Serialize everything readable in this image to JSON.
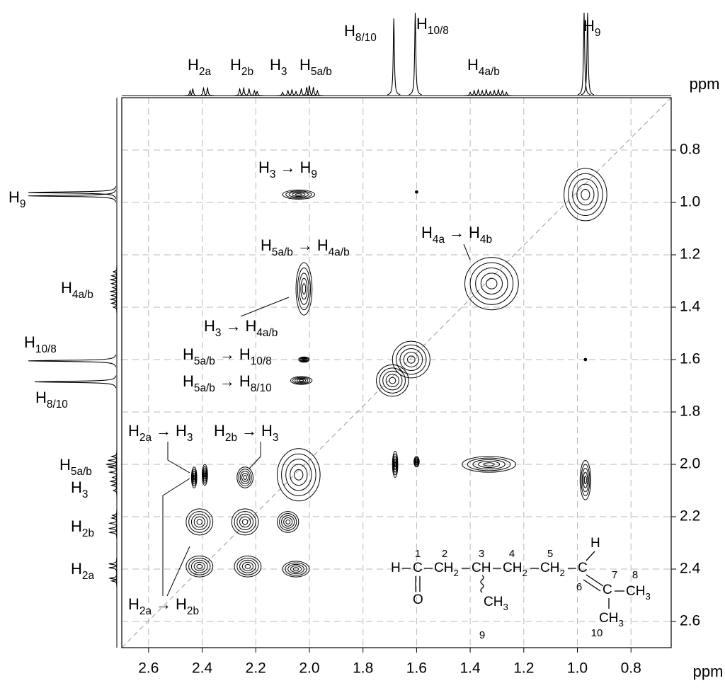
{
  "chart_data": {
    "type": "cosy",
    "xlabel": "ppm",
    "ylabel": "ppm",
    "xlim": [
      2.7,
      0.65
    ],
    "ylim": [
      0.6,
      2.7
    ],
    "xticks": [
      2.6,
      2.4,
      2.2,
      {
        "value": 2,
        "label": "2.0"
      },
      1.8,
      1.6,
      1.4,
      1.2,
      {
        "value": 1,
        "label": "1.0"
      },
      0.8
    ],
    "yticks": [
      0.8,
      {
        "value": 1,
        "label": "1.0"
      },
      1.2,
      1.4,
      1.6,
      1.8,
      {
        "value": 2,
        "label": "2.0"
      },
      2.2,
      2.4,
      2.6
    ],
    "grid": true,
    "diagonal": true,
    "color": "#000000",
    "projection": {
      "ppm": [
        2.445,
        2.435,
        2.395,
        2.38,
        2.26,
        2.245,
        2.225,
        2.205,
        2.195,
        2.1,
        2.08,
        2.065,
        2.05,
        2.03,
        2.01,
        2.0,
        1.985,
        1.97,
        1.685,
        1.605,
        1.4,
        1.385,
        1.37,
        1.355,
        1.34,
        1.325,
        1.31,
        1.295,
        1.28,
        1.265,
        0.975,
        0.962
      ],
      "height": [
        0.06,
        0.08,
        0.09,
        0.09,
        0.08,
        0.09,
        0.08,
        0.06,
        0.05,
        0.04,
        0.06,
        0.07,
        0.05,
        0.08,
        0.1,
        0.12,
        0.1,
        0.06,
        0.93,
        1.0,
        0.04,
        0.06,
        0.07,
        0.06,
        0.07,
        0.05,
        0.06,
        0.07,
        0.06,
        0.04,
        1.0,
        1.0
      ]
    },
    "peaks": {
      "x": [
        2.04,
        0.97,
        1.6,
        2.02,
        1.32,
        1.62,
        1.69,
        2.02,
        2.03,
        0.97,
        2.04,
        1.68,
        1.6,
        1.33,
        0.97,
        2.43,
        2.39,
        2.24,
        2.41,
        2.24,
        2.08,
        2.41,
        2.23,
        2.05
      ],
      "y": [
        0.97,
        0.97,
        0.96,
        1.33,
        1.31,
        1.6,
        1.68,
        1.6,
        1.68,
        1.6,
        2.04,
        2.0,
        1.99,
        2.0,
        2.06,
        2.05,
        2.04,
        2.05,
        2.22,
        2.22,
        2.22,
        2.39,
        2.39,
        2.4
      ],
      "x_width": [
        0.12,
        0.16,
        0.01,
        0.06,
        0.2,
        0.14,
        0.12,
        0.04,
        0.08,
        0.01,
        0.16,
        0.02,
        0.02,
        0.2,
        0.04,
        0.02,
        0.02,
        0.06,
        0.1,
        0.1,
        0.08,
        0.1,
        0.1,
        0.1
      ],
      "y_width": [
        0.035,
        0.2,
        0.01,
        0.2,
        0.2,
        0.14,
        0.12,
        0.02,
        0.03,
        0.01,
        0.2,
        0.1,
        0.04,
        0.06,
        0.15,
        0.08,
        0.08,
        0.08,
        0.1,
        0.1,
        0.08,
        0.08,
        0.08,
        0.06
      ]
    },
    "top_labels": [
      {
        "main": "H",
        "sub": "2a"
      },
      {
        "main": "H",
        "sub": "2b"
      },
      {
        "main": "H",
        "sub": "3"
      },
      {
        "main": "H",
        "sub": "5a/b"
      },
      {
        "main": "H",
        "sub": "8/10"
      },
      {
        "main": "H",
        "sub": "10/8"
      },
      {
        "main": "H",
        "sub": "4a/b"
      },
      {
        "main": "H",
        "sub": "9"
      }
    ],
    "left_labels": [
      {
        "main": "H",
        "sub": "9"
      },
      {
        "main": "H",
        "sub": "4a/b"
      },
      {
        "main": "H",
        "sub": "10/8"
      },
      {
        "main": "H",
        "sub": "8/10"
      },
      {
        "main": "H",
        "sub": "5a/b"
      },
      {
        "main": "H",
        "sub": "3"
      },
      {
        "main": "H",
        "sub": "2b"
      },
      {
        "main": "H",
        "sub": "2a"
      }
    ],
    "annotations": [
      {
        "from": {
          "main": "H",
          "sub": "3"
        },
        "arrow": "→",
        "to": {
          "main": "H",
          "sub": "9"
        }
      },
      {
        "from": {
          "main": "H",
          "sub": "5a/b"
        },
        "arrow": "→",
        "to": {
          "main": "H",
          "sub": "4a/b"
        }
      },
      {
        "from": {
          "main": "H",
          "sub": "4a"
        },
        "arrow": "→",
        "to": {
          "main": "H",
          "sub": "4b"
        }
      },
      {
        "from": {
          "main": "H",
          "sub": "3"
        },
        "arrow": "→",
        "to": {
          "main": "H",
          "sub": "4a/b"
        }
      },
      {
        "from": {
          "main": "H",
          "sub": "5a/b"
        },
        "arrow": "→",
        "to": {
          "main": "H",
          "sub": "10/8"
        }
      },
      {
        "from": {
          "main": "H",
          "sub": "5a/b"
        },
        "arrow": "→",
        "to": {
          "main": "H",
          "sub": "8/10"
        }
      },
      {
        "from": {
          "main": "H",
          "sub": "2a"
        },
        "arrow": "→",
        "to": {
          "main": "H",
          "sub": "3"
        }
      },
      {
        "from": {
          "main": "H",
          "sub": "2b"
        },
        "arrow": "→",
        "to": {
          "main": "H",
          "sub": "3"
        }
      },
      {
        "from": {
          "main": "H",
          "sub": "2a"
        },
        "arrow": "→",
        "to": {
          "main": "H",
          "sub": "2b"
        }
      }
    ],
    "structure": {
      "atoms": [
        {
          "main": "H"
        },
        {
          "main": "C"
        },
        {
          "main": "CH",
          "sub": "2"
        },
        {
          "main": "CH"
        },
        {
          "main": "CH",
          "sub": "2"
        },
        {
          "main": "CH",
          "sub": "2"
        },
        {
          "main": "C"
        },
        {
          "main": "H"
        },
        {
          "main": "C"
        },
        {
          "main": "CH",
          "sub": "3"
        },
        {
          "main": "O"
        },
        {
          "main": "CH",
          "sub": "3"
        },
        {
          "main": "CH",
          "sub": "3"
        }
      ],
      "locants": [
        "1",
        "2",
        "3",
        "4",
        "5",
        "6",
        "7",
        "8",
        "9",
        "10"
      ]
    }
  }
}
